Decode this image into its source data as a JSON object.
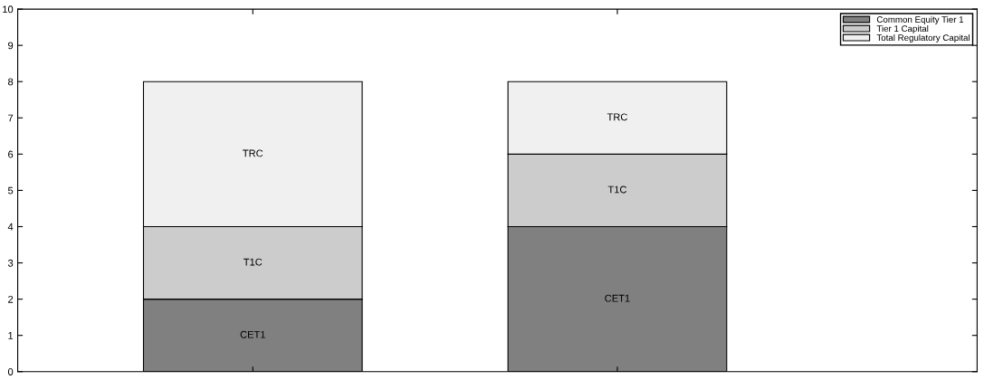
{
  "chart_data": {
    "type": "bar",
    "stacked": true,
    "categories": [
      null,
      null
    ],
    "series": [
      {
        "name": "Common Equity Tier 1",
        "color": "#808080",
        "values": [
          2,
          4
        ],
        "value_labels": [
          "CET1",
          "CET1"
        ]
      },
      {
        "name": "Tier 1 Capital",
        "color": "#cccccc",
        "values": [
          2,
          2
        ],
        "value_labels": [
          "T1C",
          "T1C"
        ]
      },
      {
        "name": "Total Regulatory Capital",
        "color": "#f0f0f0",
        "values": [
          4,
          2
        ],
        "value_labels": [
          "TRC",
          "TRC"
        ]
      }
    ],
    "ylim": [
      0,
      10
    ],
    "yticks": [
      0,
      1,
      2,
      3,
      4,
      5,
      6,
      7,
      8,
      9,
      10
    ],
    "legend": "top right"
  }
}
